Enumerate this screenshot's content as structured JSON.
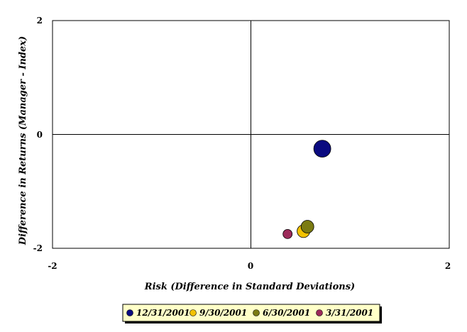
{
  "chart_data": {
    "type": "scatter",
    "title": "",
    "xlabel": "Risk (Difference in Standard Deviations)",
    "ylabel": "Difference in Returns (Manager - Index)",
    "xlim": [
      -2,
      2
    ],
    "ylim": [
      -2,
      2
    ],
    "x_ticks": [
      "-2",
      "0",
      "2"
    ],
    "y_ticks": [
      "2",
      "0",
      "-2"
    ],
    "grid": false,
    "legend_position": "bottom",
    "series": [
      {
        "name": "12/31/2001",
        "color": "#0a0a80",
        "size": "large",
        "points": [
          {
            "x": 0.72,
            "y": -0.25
          }
        ]
      },
      {
        "name": "9/30/2001",
        "color": "#f2c200",
        "size": "medium",
        "points": [
          {
            "x": 0.53,
            "y": -1.7
          }
        ]
      },
      {
        "name": "6/30/2001",
        "color": "#7b7b12",
        "size": "medium",
        "points": [
          {
            "x": 0.57,
            "y": -1.62
          }
        ]
      },
      {
        "name": "3/31/2001",
        "color": "#9c2a5a",
        "size": "small",
        "points": [
          {
            "x": 0.37,
            "y": -1.75
          }
        ]
      }
    ]
  }
}
